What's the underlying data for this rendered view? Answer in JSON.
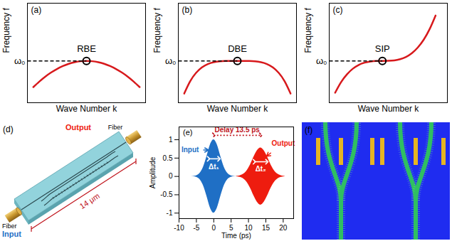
{
  "chart_data": [
    {
      "type": "line",
      "panel": "(a)",
      "x_label": "Wave Number k",
      "y_label": "Frequency f",
      "tick_labels": false,
      "xlim": [
        0,
        1
      ],
      "ylim": [
        0,
        1
      ],
      "x": [
        0.05,
        0.1,
        0.15,
        0.2,
        0.25,
        0.3,
        0.35,
        0.4,
        0.45,
        0.5,
        0.55,
        0.6,
        0.65,
        0.7,
        0.75,
        0.8,
        0.85,
        0.9,
        0.95
      ],
      "values": [
        0.157,
        0.212,
        0.261,
        0.303,
        0.339,
        0.368,
        0.391,
        0.407,
        0.417,
        0.42,
        0.417,
        0.407,
        0.391,
        0.368,
        0.339,
        0.303,
        0.261,
        0.212,
        0.157
      ],
      "color": "#d7191c",
      "marker": "circle",
      "annotation": {
        "text": "RBE",
        "x": 0.5,
        "y": 0.42
      },
      "reference": {
        "label": "ω₀",
        "y": 0.42
      }
    },
    {
      "type": "line",
      "panel": "(b)",
      "x_label": "Wave Number k",
      "y_label": "Frequency f",
      "tick_labels": false,
      "xlim": [
        0,
        1
      ],
      "ylim": [
        0,
        1
      ],
      "x": [
        0.05,
        0.1,
        0.15,
        0.2,
        0.25,
        0.3,
        0.35,
        0.4,
        0.45,
        0.5,
        0.55,
        0.6,
        0.65,
        0.7,
        0.75,
        0.8,
        0.85,
        0.9,
        0.95
      ],
      "values": [
        0.092,
        0.215,
        0.3,
        0.355,
        0.389,
        0.407,
        0.416,
        0.419,
        0.42,
        0.42,
        0.42,
        0.419,
        0.416,
        0.407,
        0.389,
        0.355,
        0.3,
        0.215,
        0.092
      ],
      "color": "#d7191c",
      "marker": "circle",
      "annotation": {
        "text": "DBE",
        "x": 0.5,
        "y": 0.42
      },
      "reference": {
        "label": "ω₀",
        "y": 0.42
      }
    },
    {
      "type": "line",
      "panel": "(c)",
      "x_label": "Wave Number k",
      "y_label": "Frequency f",
      "tick_labels": false,
      "xlim": [
        0,
        1
      ],
      "ylim": [
        0,
        1
      ],
      "x": [
        0.05,
        0.1,
        0.15,
        0.2,
        0.25,
        0.3,
        0.35,
        0.4,
        0.45,
        0.5,
        0.55,
        0.6,
        0.65,
        0.7,
        0.75,
        0.8,
        0.85,
        0.9
      ],
      "values": [
        0.1,
        0.206,
        0.285,
        0.342,
        0.38,
        0.403,
        0.415,
        0.419,
        0.42,
        0.421,
        0.425,
        0.437,
        0.46,
        0.498,
        0.555,
        0.634,
        0.74,
        0.876
      ],
      "color": "#d7191c",
      "marker": "circle",
      "annotation": {
        "text": "SIP",
        "x": 0.45,
        "y": 0.42
      },
      "reference": {
        "label": "ω₀",
        "y": 0.42
      }
    },
    {
      "type": "area",
      "panel": "(e)",
      "x_label": "Time (ps)",
      "y_label": "Amplitude",
      "xlim": [
        -10,
        23
      ],
      "ylim": [
        -1.15,
        1.35
      ],
      "xticks": [
        -10,
        -5,
        0,
        5,
        10,
        15,
        20
      ],
      "yticks": [
        -1,
        -0.5,
        0,
        0.5,
        1
      ],
      "series": [
        {
          "color": "#1f6fc5",
          "x": [
            -7,
            -6,
            -5,
            -4,
            -3,
            -2,
            -1,
            0,
            1,
            2,
            3,
            4,
            5,
            6,
            7
          ],
          "upper": [
            0,
            0.004,
            0.02,
            0.085,
            0.25,
            0.54,
            0.86,
            1,
            0.86,
            0.54,
            0.25,
            0.085,
            0.02,
            0.004,
            0
          ],
          "lower": [
            0,
            -0.004,
            -0.02,
            -0.085,
            -0.25,
            -0.54,
            -0.86,
            -1,
            -0.86,
            -0.54,
            -0.25,
            -0.085,
            -0.02,
            -0.004,
            0
          ]
        },
        {
          "color": "#ee1c0f",
          "x": [
            6.5,
            7.5,
            8.5,
            9.5,
            10.5,
            11.5,
            12.5,
            13.5,
            14.5,
            15.5,
            16.5,
            17.5,
            18.5,
            19.5,
            20.5
          ],
          "upper": [
            0.005,
            0.019,
            0.059,
            0.15,
            0.31,
            0.52,
            0.7,
            0.78,
            0.7,
            0.52,
            0.31,
            0.15,
            0.059,
            0.019,
            0.005
          ],
          "lower": [
            -0.005,
            -0.019,
            -0.059,
            -0.15,
            -0.31,
            -0.52,
            -0.7,
            -0.78,
            -0.7,
            -0.52,
            -0.31,
            -0.15,
            -0.059,
            -0.019,
            -0.005
          ]
        }
      ],
      "annotations": [
        {
          "text": "Input",
          "x": -6.8,
          "y": 0.72,
          "color": "#1f6fc5",
          "arrow_to": {
            "x": -1.5,
            "y": 0.72
          }
        },
        {
          "text": "Output",
          "x": 20,
          "y": 0.9,
          "color": "#ee1c0f",
          "arrow_to": {
            "x": 15.2,
            "y": 0.55
          }
        }
      ],
      "spans": [
        {
          "text": "Δt₁",
          "x1": -1.5,
          "x2": 1.5,
          "y": 0.48,
          "label_y": 0.26,
          "color": "#ffffff",
          "line_style": "solid"
        },
        {
          "text": "Δt₂",
          "x1": 11.7,
          "x2": 15.3,
          "y": 0.4,
          "label_y": 0.2,
          "color": "#ffffff",
          "line_style": "solid"
        },
        {
          "text": "Delay 13.5 ps",
          "x1": 0,
          "x2": 13.5,
          "y": 1.12,
          "color": "#c0141c",
          "line_style": "dotted"
        }
      ]
    }
  ],
  "schematic": {
    "panel": "(d)",
    "input_label": "Input",
    "output_label": "Output",
    "fiber_labels": [
      "Fiber",
      "Fiber"
    ],
    "dimension": "14 μm"
  },
  "simulation": {
    "panel": "(f)"
  }
}
